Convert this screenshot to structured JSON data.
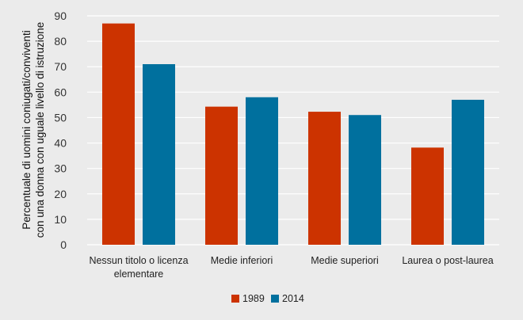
{
  "chart_data": {
    "type": "bar",
    "categories": [
      [
        "Nessun titolo o licenza",
        "elementare"
      ],
      [
        "Medie inferiori"
      ],
      [
        "Medie superiori"
      ],
      [
        "Laurea o post-laurea"
      ]
    ],
    "series": [
      {
        "name": "1989",
        "color": "#cc3300",
        "values": [
          87,
          54.3,
          52.3,
          38.2
        ]
      },
      {
        "name": "2014",
        "color": "#00709e",
        "values": [
          71,
          58,
          51,
          57
        ]
      }
    ],
    "ylabel": [
      "Percentuale di uomini coniugati/conviventi",
      "con una donna con uguale livello di istruzione"
    ],
    "ylim": [
      0,
      90
    ],
    "yticks": [
      0,
      10,
      20,
      30,
      40,
      50,
      60,
      70,
      80,
      90
    ],
    "grid": true,
    "legend": "bottom"
  }
}
